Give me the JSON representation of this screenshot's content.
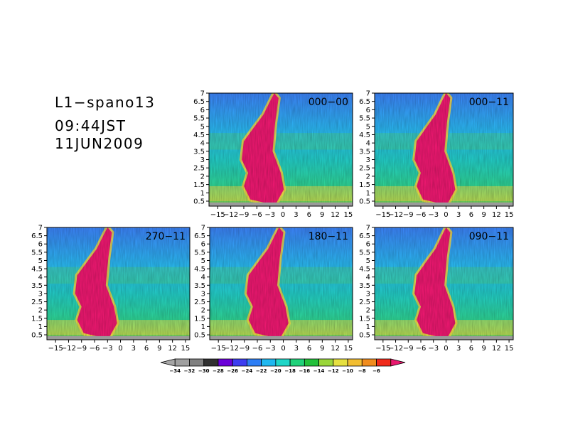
{
  "header": {
    "run": "L1−spano13",
    "time": "09:44JST",
    "date": "11JUN2009"
  },
  "chart_data": {
    "type": "heatmap",
    "xticks": [
      "−15",
      "−12",
      "−9",
      "−6",
      "−3",
      "0",
      "3",
      "6",
      "9",
      "12",
      "15"
    ],
    "xtick_values": [
      -15,
      -12,
      -9,
      -6,
      -3,
      0,
      3,
      6,
      9,
      12,
      15
    ],
    "yticks": [
      "0.5",
      "1",
      "1.5",
      "2",
      "2.5",
      "3",
      "3.5",
      "4",
      "4.5",
      "5",
      "5.5",
      "6",
      "6.5",
      "7"
    ],
    "ytick_values": [
      0.5,
      1,
      1.5,
      2,
      2.5,
      3,
      3.5,
      4,
      4.5,
      5,
      5.5,
      6,
      6.5,
      7
    ],
    "xlim": [
      -17,
      16
    ],
    "ylim": [
      0.2,
      7
    ],
    "panels": [
      {
        "label": "000−00",
        "center_x": -3
      },
      {
        "label": "000−11",
        "center_x": -1
      },
      {
        "label": "270−11",
        "center_x": -4
      },
      {
        "label": "180−11",
        "center_x": -2
      },
      {
        "label": "090−11",
        "center_x": -1
      }
    ],
    "colorbar": {
      "labels": [
        "−34",
        "−32",
        "−30",
        "−28",
        "−26",
        "−24",
        "−22",
        "−20",
        "−18",
        "−16",
        "−14",
        "−12",
        "−10",
        "−8",
        "−6"
      ],
      "colors": [
        "#a6a6a6",
        "#a0a0a0",
        "#808080",
        "#303030",
        "#6a00d8",
        "#3d3df0",
        "#2d7ef5",
        "#1fb8f0",
        "#1fd6c8",
        "#20d27a",
        "#22c03a",
        "#9ad63a",
        "#e6e040",
        "#f2be32",
        "#f08c1e",
        "#f02a1a",
        "#e8186e"
      ]
    }
  }
}
